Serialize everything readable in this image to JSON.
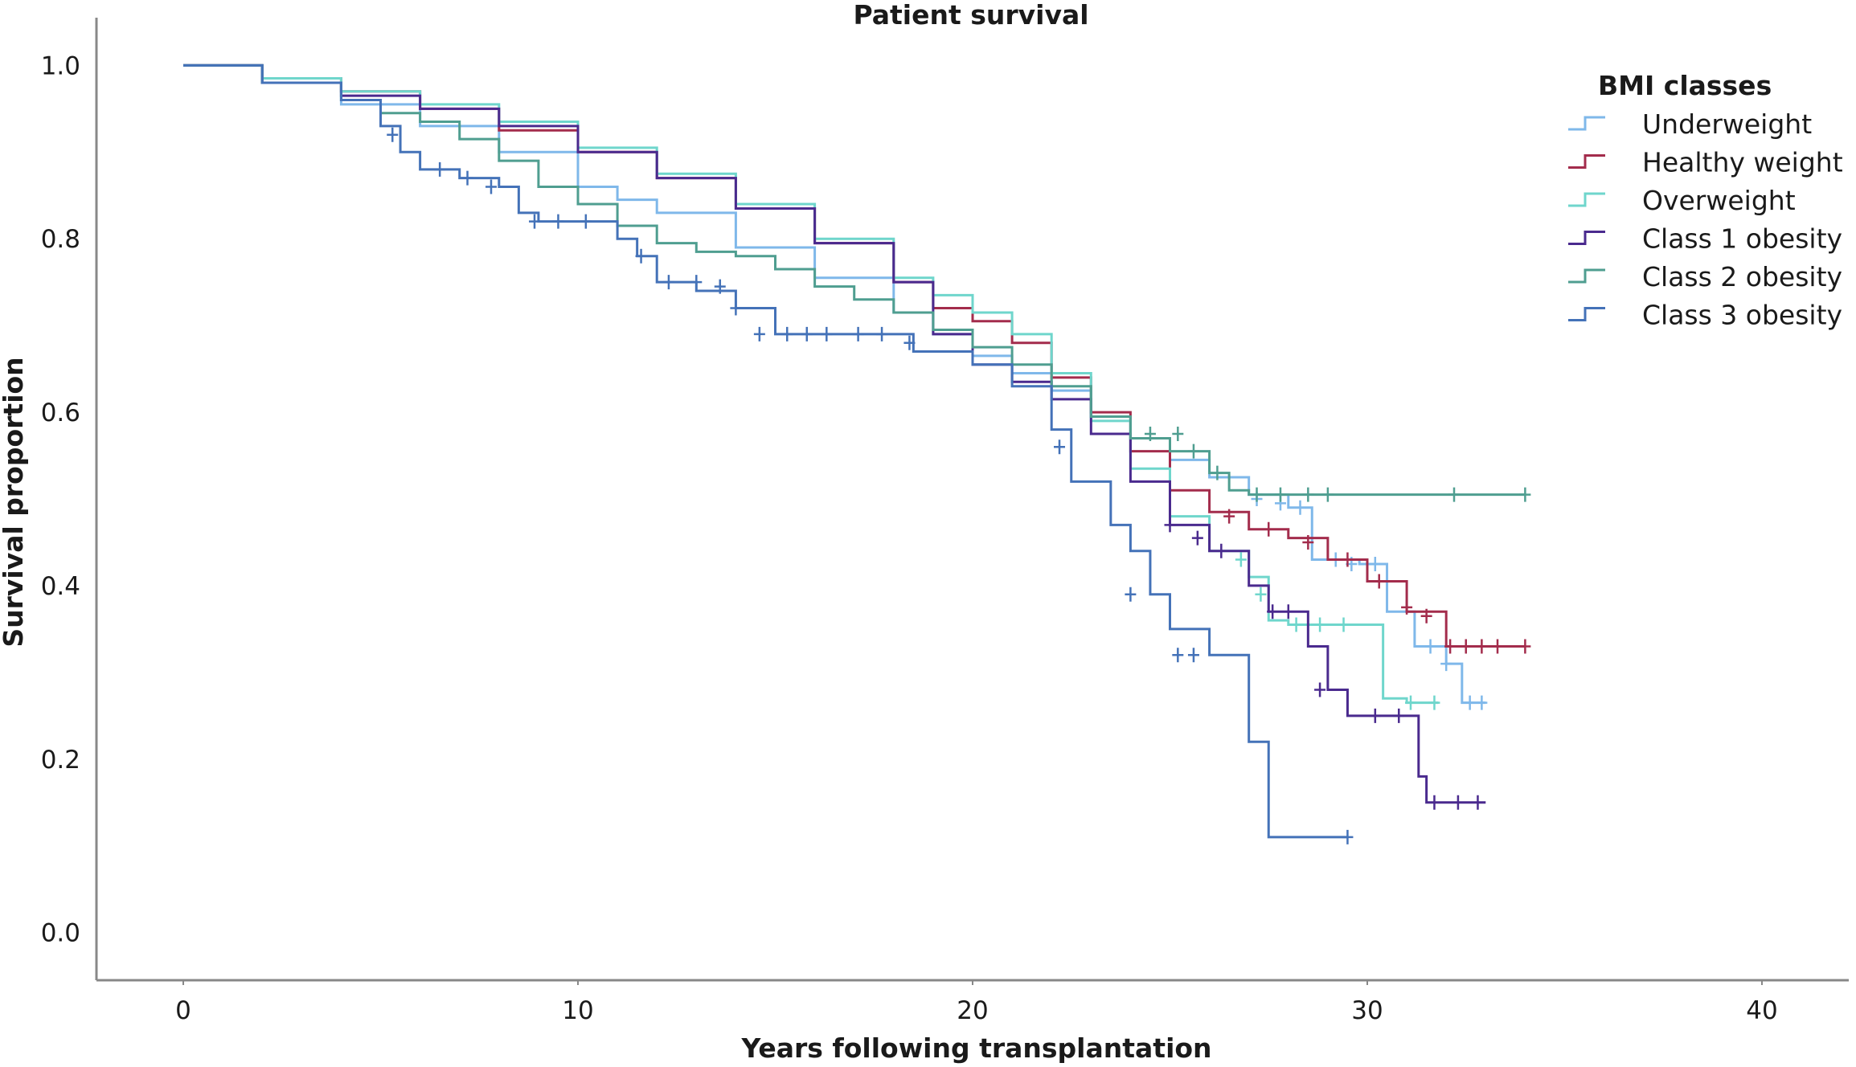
{
  "chart_data": {
    "type": "line",
    "step": true,
    "title": "Patient survival",
    "xlabel": "Years following transplantation",
    "ylabel": "Survival proportion",
    "xlim": [
      -2.2,
      42.2
    ],
    "ylim": [
      -0.055,
      1.055
    ],
    "x_ticks": [
      0,
      10,
      20,
      30,
      40
    ],
    "x_tick_labels": [
      "0",
      "10",
      "20",
      "30",
      "40"
    ],
    "y_ticks": [
      0.0,
      0.2,
      0.4,
      0.6,
      0.8,
      1.0
    ],
    "y_tick_labels": [
      "0.0",
      "0.2",
      "0.4",
      "0.6",
      "0.8",
      "1.0"
    ],
    "grid": false,
    "legend": {
      "title": "BMI classes",
      "position": "top-right"
    },
    "series": [
      {
        "name": "Underweight",
        "color": "#7fb8ea",
        "x": [
          0,
          2,
          4,
          6,
          8,
          10,
          11,
          12,
          14,
          16,
          18,
          19,
          20,
          21,
          22,
          23,
          24,
          25,
          26,
          27,
          28,
          28.6,
          29,
          29.8,
          30.5,
          31.2,
          32,
          32.4,
          33
        ],
        "y": [
          1.0,
          0.98,
          0.955,
          0.93,
          0.9,
          0.86,
          0.845,
          0.83,
          0.79,
          0.755,
          0.715,
          0.69,
          0.665,
          0.645,
          0.625,
          0.595,
          0.57,
          0.545,
          0.525,
          0.505,
          0.49,
          0.43,
          0.43,
          0.425,
          0.37,
          0.33,
          0.31,
          0.265,
          0.265
        ],
        "censored_x": [
          27.2,
          27.8,
          28.3,
          29.2,
          29.6,
          30.2,
          31.6,
          32.0,
          32.6,
          32.9
        ],
        "censored_y": [
          0.5,
          0.495,
          0.49,
          0.43,
          0.425,
          0.425,
          0.33,
          0.31,
          0.265,
          0.265
        ]
      },
      {
        "name": "Healthy weight",
        "color": "#a32c4c",
        "x": [
          0,
          2,
          4,
          6,
          8,
          10,
          12,
          14,
          16,
          18,
          19,
          20,
          21,
          22,
          23,
          24,
          25,
          26,
          27,
          28,
          29,
          30,
          31,
          32,
          34
        ],
        "y": [
          1.0,
          0.985,
          0.97,
          0.95,
          0.925,
          0.9,
          0.87,
          0.835,
          0.795,
          0.75,
          0.72,
          0.705,
          0.68,
          0.64,
          0.6,
          0.555,
          0.51,
          0.485,
          0.465,
          0.455,
          0.43,
          0.405,
          0.37,
          0.33,
          0.33
        ],
        "censored_x": [
          26.5,
          27.5,
          28.5,
          29.5,
          30.3,
          31.0,
          31.5,
          32.1,
          32.5,
          32.9,
          33.3,
          34.0
        ],
        "censored_y": [
          0.48,
          0.465,
          0.45,
          0.43,
          0.405,
          0.375,
          0.365,
          0.33,
          0.33,
          0.33,
          0.33,
          0.33
        ]
      },
      {
        "name": "Overweight",
        "color": "#6fd6cc",
        "x": [
          0,
          2,
          4,
          6,
          8,
          10,
          12,
          14,
          16,
          18,
          19,
          20,
          21,
          22,
          23,
          24,
          25,
          26,
          27,
          27.5,
          28,
          30,
          30.4,
          31,
          31.8
        ],
        "y": [
          1.0,
          0.985,
          0.97,
          0.955,
          0.935,
          0.905,
          0.875,
          0.84,
          0.8,
          0.755,
          0.735,
          0.715,
          0.69,
          0.645,
          0.59,
          0.535,
          0.48,
          0.44,
          0.41,
          0.36,
          0.355,
          0.355,
          0.27,
          0.265,
          0.265
        ],
        "censored_x": [
          26.8,
          27.3,
          28.2,
          28.8,
          29.4,
          31.1,
          31.7
        ],
        "censored_y": [
          0.43,
          0.39,
          0.355,
          0.355,
          0.355,
          0.265,
          0.265
        ]
      },
      {
        "name": "Class 1 obesity",
        "color": "#4a2a8e",
        "x": [
          0,
          2,
          4,
          6,
          8,
          10,
          12,
          14,
          16,
          18,
          19,
          20,
          21,
          22,
          23,
          24,
          25,
          26,
          27,
          27.5,
          28.5,
          29,
          29.5,
          30,
          31,
          31.3,
          31.5,
          32,
          33
        ],
        "y": [
          1.0,
          0.98,
          0.965,
          0.95,
          0.93,
          0.9,
          0.87,
          0.835,
          0.795,
          0.75,
          0.69,
          0.655,
          0.635,
          0.615,
          0.575,
          0.52,
          0.47,
          0.44,
          0.4,
          0.37,
          0.33,
          0.28,
          0.25,
          0.25,
          0.25,
          0.18,
          0.15,
          0.15,
          0.15
        ],
        "censored_x": [
          25.0,
          25.7,
          26.3,
          27.6,
          28.0,
          28.8,
          30.2,
          30.8,
          31.7,
          32.3,
          32.8
        ],
        "censored_y": [
          0.47,
          0.455,
          0.44,
          0.37,
          0.37,
          0.28,
          0.25,
          0.25,
          0.15,
          0.15,
          0.15
        ]
      },
      {
        "name": "Class 2 obesity",
        "color": "#4f9e90",
        "x": [
          0,
          2,
          4,
          5,
          6,
          7,
          8,
          9,
          10,
          11,
          12,
          13,
          14,
          15,
          16,
          17,
          18,
          19,
          20,
          21,
          22,
          23,
          24,
          25,
          26,
          26.5,
          27,
          34
        ],
        "y": [
          1.0,
          0.98,
          0.96,
          0.945,
          0.935,
          0.915,
          0.89,
          0.86,
          0.84,
          0.815,
          0.795,
          0.785,
          0.78,
          0.765,
          0.745,
          0.73,
          0.715,
          0.695,
          0.675,
          0.655,
          0.63,
          0.595,
          0.57,
          0.555,
          0.53,
          0.51,
          0.505,
          0.505
        ],
        "censored_x": [
          24.5,
          25.2,
          25.6,
          26.2,
          27.2,
          27.8,
          28.5,
          29.0,
          32.2,
          34.0
        ],
        "censored_y": [
          0.575,
          0.575,
          0.555,
          0.53,
          0.505,
          0.505,
          0.505,
          0.505,
          0.505,
          0.505
        ]
      },
      {
        "name": "Class 3 obesity",
        "color": "#4472b8",
        "x": [
          0,
          2,
          4,
          5,
          5.5,
          6,
          7,
          8,
          8.5,
          9,
          10,
          11,
          11.5,
          12,
          13,
          14,
          15,
          17,
          18,
          18.5,
          19,
          20,
          21,
          22,
          22.5,
          23,
          23.5,
          24,
          24.5,
          25,
          26,
          27,
          27.5,
          28,
          29.5
        ],
        "y": [
          1.0,
          0.98,
          0.96,
          0.93,
          0.9,
          0.88,
          0.87,
          0.86,
          0.83,
          0.82,
          0.82,
          0.8,
          0.78,
          0.75,
          0.74,
          0.72,
          0.69,
          0.69,
          0.69,
          0.67,
          0.67,
          0.655,
          0.63,
          0.58,
          0.52,
          0.52,
          0.47,
          0.44,
          0.39,
          0.35,
          0.32,
          0.22,
          0.11,
          0.11,
          0.11
        ],
        "censored_x": [
          5.3,
          6.5,
          7.2,
          7.8,
          8.9,
          9.5,
          10.2,
          11.6,
          12.3,
          13.0,
          13.6,
          14.0,
          14.6,
          15.3,
          15.8,
          16.3,
          17.1,
          17.7,
          18.4,
          22.2,
          24.0,
          25.2,
          25.6,
          29.5
        ],
        "censored_y": [
          0.92,
          0.88,
          0.87,
          0.86,
          0.82,
          0.82,
          0.82,
          0.78,
          0.75,
          0.75,
          0.745,
          0.72,
          0.69,
          0.69,
          0.69,
          0.69,
          0.69,
          0.69,
          0.68,
          0.56,
          0.39,
          0.32,
          0.32,
          0.11
        ]
      }
    ]
  }
}
